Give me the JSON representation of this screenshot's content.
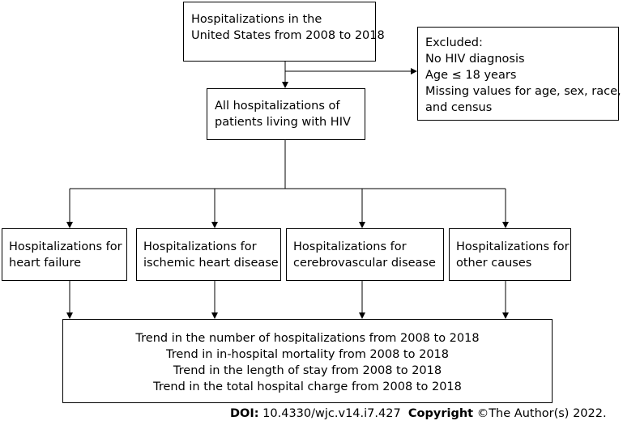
{
  "boxes": {
    "top": [
      "Hospitalizations in the",
      "United States from 2008 to 2018"
    ],
    "excluded": [
      "Excluded:",
      "No HIV diagnosis",
      "Age ≤ 18 years",
      "Missing values for age, sex, race,",
      "and census"
    ],
    "all_hiv": [
      "All hospitalizations of",
      "patients living with HIV"
    ],
    "heart_failure": [
      "Hospitalizations for",
      "heart failure"
    ],
    "ischemic": [
      "Hospitalizations for",
      "ischemic heart disease"
    ],
    "cerebrovascular": [
      "Hospitalizations for",
      "cerebrovascular disease"
    ],
    "other": [
      "Hospitalizations for",
      "other causes"
    ],
    "trends": [
      "Trend in the number of hospitalizations from 2008 to 2018",
      "Trend in in-hospital mortality from 2008 to 2018",
      "Trend in the length of stay from 2008 to 2018",
      "Trend in the total hospital charge from 2008 to 2018"
    ]
  },
  "footer": {
    "doi_label": "DOI:",
    "doi_value": " 10.4330/wjc.v14.i7.427",
    "copyright_label": "Copyright",
    "copyright_value": " ©The Author(s) 2022."
  }
}
